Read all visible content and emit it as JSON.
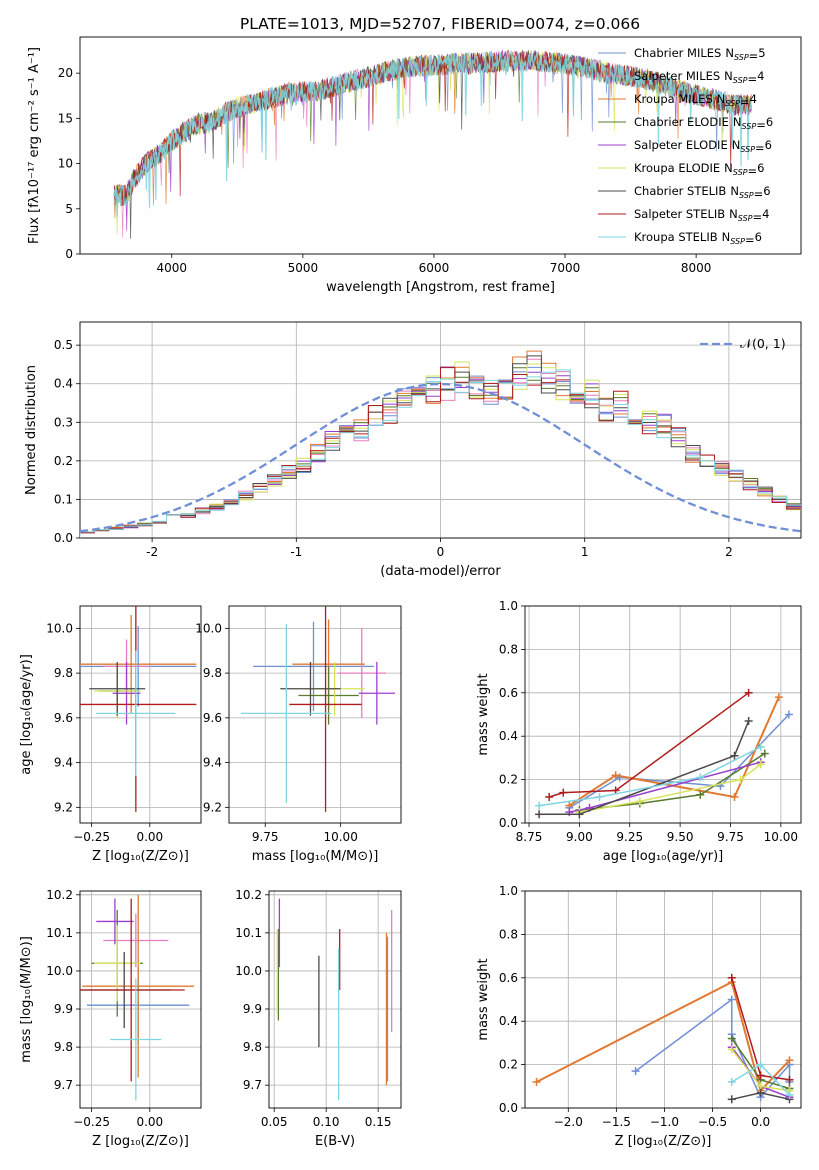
{
  "figure": {
    "title": "PLATE=1013, MJD=52707, FIBERID=0074, z=0.066"
  },
  "models": [
    {
      "name": "Chabrier MILES",
      "nssp": "5",
      "color": "#6f8fd6"
    },
    {
      "name": "Salpeter MILES",
      "nssp": "4",
      "color": "#e87dbf"
    },
    {
      "name": "Kroupa MILES",
      "nssp": "4",
      "color": "#e07a30"
    },
    {
      "name": "Chabrier ELODIE",
      "nssp": "6",
      "color": "#5a7a2e"
    },
    {
      "name": "Salpeter ELODIE",
      "nssp": "6",
      "color": "#9b3fce"
    },
    {
      "name": "Kroupa ELODIE",
      "nssp": "6",
      "color": "#d6e35a"
    },
    {
      "name": "Chabrier STELIB",
      "nssp": "6",
      "color": "#4a4a4a"
    },
    {
      "name": "Salpeter STELIB",
      "nssp": "4",
      "color": "#b01c1c"
    },
    {
      "name": "Kroupa STELIB",
      "nssp": "6",
      "color": "#7fd6e0"
    }
  ],
  "nssp_prefix": "N",
  "nssp_sub": "SSP",
  "chart_data": [
    {
      "id": "spectrum",
      "type": "line",
      "xlabel": "wavelength [Angstrom, rest frame]",
      "ylabel": "Flux [fλ10⁻¹⁷ erg cm⁻² s⁻¹ A⁻¹]",
      "xlim": [
        3300,
        8800
      ],
      "ylim": [
        0,
        24
      ],
      "xticks": [
        4000,
        5000,
        6000,
        7000,
        8000
      ],
      "yticks": [
        0,
        5,
        10,
        15,
        20
      ],
      "grid": false,
      "legend_placement": "right",
      "continuum": [
        [
          3560,
          6.5
        ],
        [
          3650,
          6.5
        ],
        [
          3700,
          8
        ],
        [
          3800,
          10
        ],
        [
          3900,
          11
        ],
        [
          4000,
          12.5
        ],
        [
          4100,
          13.5
        ],
        [
          4200,
          14.5
        ],
        [
          4300,
          14.5
        ],
        [
          4400,
          15.5
        ],
        [
          4500,
          16.2
        ],
        [
          4700,
          17
        ],
        [
          4900,
          17.8
        ],
        [
          5100,
          18
        ],
        [
          5300,
          18.8
        ],
        [
          5500,
          19.6
        ],
        [
          5700,
          20.4
        ],
        [
          5900,
          20.8
        ],
        [
          6100,
          21
        ],
        [
          6300,
          21.1
        ],
        [
          6500,
          21.3
        ],
        [
          6700,
          21.4
        ],
        [
          6900,
          21.2
        ],
        [
          7100,
          20.8
        ],
        [
          7300,
          20.1
        ],
        [
          7500,
          19.7
        ],
        [
          7700,
          19
        ],
        [
          7900,
          18
        ],
        [
          8100,
          17.2
        ],
        [
          8300,
          16.5
        ],
        [
          8400,
          16.5
        ]
      ]
    },
    {
      "id": "residuals",
      "type": "histogram",
      "xlabel": "(data-model)/error",
      "ylabel": "Normed distribution",
      "xlim": [
        -2.5,
        2.5
      ],
      "ylim": [
        0,
        0.56
      ],
      "xticks": [
        -2,
        -1,
        0,
        1,
        2
      ],
      "yticks": [
        0.0,
        0.1,
        0.2,
        0.3,
        0.4,
        0.5
      ],
      "grid": true,
      "legend_placement": "top-right",
      "legend_label": "𝒩(0, 1)",
      "reference_curve": "normal(0,1)",
      "bin_width": 0.1,
      "bins_start": -2.5,
      "profile": [
        0.015,
        0.02,
        0.025,
        0.03,
        0.035,
        0.04,
        0.055,
        0.06,
        0.07,
        0.08,
        0.09,
        0.11,
        0.13,
        0.15,
        0.17,
        0.19,
        0.22,
        0.25,
        0.27,
        0.28,
        0.31,
        0.33,
        0.36,
        0.38,
        0.39,
        0.4,
        0.42,
        0.4,
        0.38,
        0.39,
        0.43,
        0.44,
        0.42,
        0.4,
        0.39,
        0.37,
        0.34,
        0.35,
        0.31,
        0.3,
        0.29,
        0.26,
        0.22,
        0.2,
        0.18,
        0.16,
        0.14,
        0.12,
        0.1,
        0.08
      ]
    },
    {
      "id": "age-vs-Z",
      "type": "errorbar",
      "xlabel": "Z [log₁₀(Z/Z⊙)]",
      "ylabel": "age  [log₁₀(age/yr)]",
      "xlim": [
        -0.3,
        0.22
      ],
      "ylim": [
        9.13,
        10.1
      ],
      "xticks": [
        -0.25,
        0.0
      ],
      "xtick_labels": [
        "−0.25",
        "0.00"
      ],
      "yticks": [
        9.2,
        9.4,
        9.6,
        9.8,
        10.0
      ],
      "grid": true,
      "points": [
        {
          "x": -0.05,
          "xerr": 0.25,
          "y": 9.83,
          "yerr": 0.18,
          "color": "#6f8fd6"
        },
        {
          "x": -0.1,
          "xerr": 0.1,
          "y": 9.83,
          "yerr": 0.12,
          "color": "#e87dbf"
        },
        {
          "x": -0.08,
          "xerr": 0.28,
          "y": 9.84,
          "yerr": 0.22,
          "color": "#e07a30"
        },
        {
          "x": -0.14,
          "xerr": 0.08,
          "y": 9.72,
          "yerr": 0.12,
          "color": "#5a7a2e"
        },
        {
          "x": -0.1,
          "xerr": 0.06,
          "y": 9.71,
          "yerr": 0.14,
          "color": "#9b3fce"
        },
        {
          "x": -0.14,
          "xerr": 0.1,
          "y": 9.72,
          "yerr": 0.12,
          "color": "#d6e35a"
        },
        {
          "x": -0.14,
          "xerr": 0.12,
          "y": 9.73,
          "yerr": 0.12,
          "color": "#4a4a4a"
        },
        {
          "x": -0.06,
          "xerr": 0.26,
          "y": 9.66,
          "yerr": 0.48,
          "color": "#b01c1c"
        },
        {
          "x": -0.06,
          "xerr": 0.17,
          "y": 9.62,
          "yerr": 0.28,
          "color": "#7fd6e0"
        }
      ]
    },
    {
      "id": "age-vs-mass",
      "type": "errorbar",
      "xlabel": "mass [log₁₀(M/M⊙)]",
      "ylabel": "",
      "xlim": [
        9.63,
        10.2
      ],
      "ylim": [
        9.13,
        10.1
      ],
      "xticks": [
        9.75,
        10.0
      ],
      "xtick_labels": [
        "9.75",
        "10.00"
      ],
      "yticks": [
        9.2,
        9.4,
        9.6,
        9.8,
        10.0
      ],
      "grid": true,
      "points": [
        {
          "x": 9.91,
          "xerr": 0.2,
          "y": 9.83,
          "yerr": 0.2,
          "color": "#6f8fd6"
        },
        {
          "x": 10.07,
          "xerr": 0.08,
          "y": 9.8,
          "yerr": 0.2,
          "color": "#e87dbf"
        },
        {
          "x": 9.96,
          "xerr": 0.12,
          "y": 9.84,
          "yerr": 0.2,
          "color": "#e07a30"
        },
        {
          "x": 9.96,
          "xerr": 0.1,
          "y": 9.7,
          "yerr": 0.13,
          "color": "#5a7a2e"
        },
        {
          "x": 10.12,
          "xerr": 0.06,
          "y": 9.71,
          "yerr": 0.14,
          "color": "#9b3fce"
        },
        {
          "x": 9.98,
          "xerr": 0.1,
          "y": 9.73,
          "yerr": 0.12,
          "color": "#d6e35a"
        },
        {
          "x": 9.9,
          "xerr": 0.1,
          "y": 9.73,
          "yerr": 0.12,
          "color": "#4a4a4a"
        },
        {
          "x": 9.95,
          "xerr": 0.12,
          "y": 9.66,
          "yerr": 0.48,
          "color": "#b01c1c"
        },
        {
          "x": 9.82,
          "xerr": 0.15,
          "y": 9.62,
          "yerr": 0.4,
          "color": "#7fd6e0"
        }
      ]
    },
    {
      "id": "weight-vs-age",
      "type": "line",
      "xlabel": "age  [log₁₀(age/yr)]",
      "ylabel": "mass weight",
      "xlim": [
        8.73,
        10.1
      ],
      "ylim": [
        0.0,
        1.0
      ],
      "xticks": [
        8.75,
        9.0,
        9.25,
        9.5,
        9.75,
        10.0
      ],
      "xtick_labels": [
        "8.75",
        "9.00",
        "9.25",
        "9.50",
        "9.75",
        "10.00"
      ],
      "yticks": [
        0.0,
        0.2,
        0.4,
        0.6,
        0.8,
        1.0
      ],
      "grid": true,
      "series": [
        {
          "color": "#6f8fd6",
          "points": [
            [
              8.95,
              0.07
            ],
            [
              9.2,
              0.21
            ],
            [
              9.7,
              0.17
            ],
            [
              10.04,
              0.5
            ]
          ]
        },
        {
          "color": "#e07a30",
          "points": [
            [
              8.95,
              0.08
            ],
            [
              9.18,
              0.22
            ],
            [
              9.77,
              0.12
            ],
            [
              9.99,
              0.58
            ]
          ]
        },
        {
          "color": "#5a7a2e",
          "points": [
            [
              9.0,
              0.06
            ],
            [
              9.3,
              0.09
            ],
            [
              9.6,
              0.13
            ],
            [
              9.92,
              0.32
            ]
          ]
        },
        {
          "color": "#9b3fce",
          "points": [
            [
              8.95,
              0.05
            ],
            [
              9.05,
              0.07
            ],
            [
              9.9,
              0.28
            ]
          ]
        },
        {
          "color": "#d6e35a",
          "points": [
            [
              9.0,
              0.05
            ],
            [
              9.3,
              0.1
            ],
            [
              9.8,
              0.2
            ],
            [
              9.9,
              0.27
            ]
          ]
        },
        {
          "color": "#4a4a4a",
          "points": [
            [
              8.8,
              0.04
            ],
            [
              9.0,
              0.04
            ],
            [
              9.77,
              0.31
            ],
            [
              9.84,
              0.47
            ]
          ]
        },
        {
          "color": "#b01c1c",
          "points": [
            [
              8.85,
              0.12
            ],
            [
              8.92,
              0.14
            ],
            [
              9.18,
              0.15
            ],
            [
              9.84,
              0.6
            ]
          ]
        },
        {
          "color": "#7fd6e0",
          "points": [
            [
              8.8,
              0.08
            ],
            [
              9.1,
              0.12
            ],
            [
              9.6,
              0.21
            ],
            [
              9.9,
              0.35
            ]
          ]
        }
      ]
    },
    {
      "id": "mass-vs-Z",
      "type": "errorbar",
      "xlabel": "Z [log₁₀(Z/Z⊙)]",
      "ylabel": "mass [log₁₀(M/M⊙)]",
      "xlim": [
        -0.3,
        0.22
      ],
      "ylim": [
        9.64,
        10.21
      ],
      "xticks": [
        -0.25,
        0.0
      ],
      "xtick_labels": [
        "−0.25",
        "0.00"
      ],
      "yticks": [
        9.7,
        9.8,
        9.9,
        10.0,
        10.1,
        10.2
      ],
      "grid": true,
      "points": [
        {
          "x": -0.05,
          "xerr": 0.22,
          "y": 9.91,
          "yerr": 0.1,
          "color": "#6f8fd6"
        },
        {
          "x": -0.06,
          "xerr": 0.14,
          "y": 10.08,
          "yerr": 0.07,
          "color": "#e87dbf"
        },
        {
          "x": -0.05,
          "xerr": 0.24,
          "y": 9.96,
          "yerr": 0.24,
          "color": "#e07a30"
        },
        {
          "x": -0.14,
          "xerr": 0.11,
          "y": 10.02,
          "yerr": 0.14,
          "color": "#5a7a2e"
        },
        {
          "x": -0.15,
          "xerr": 0.08,
          "y": 10.13,
          "yerr": 0.06,
          "color": "#9b3fce"
        },
        {
          "x": -0.14,
          "xerr": 0.1,
          "y": 10.02,
          "yerr": 0.1,
          "color": "#d6e35a"
        },
        {
          "x": -0.11,
          "xerr": 0.2,
          "y": 9.95,
          "yerr": 0.1,
          "color": "#4a4a4a"
        },
        {
          "x": -0.08,
          "xerr": 0.23,
          "y": 9.95,
          "yerr": 0.24,
          "color": "#b01c1c"
        },
        {
          "x": -0.06,
          "xerr": 0.11,
          "y": 9.82,
          "yerr": 0.16,
          "color": "#7fd6e0"
        }
      ]
    },
    {
      "id": "mass-vs-ebv",
      "type": "errorbar",
      "xlabel": "E(B-V)",
      "ylabel": "",
      "xlim": [
        0.045,
        0.172
      ],
      "ylim": [
        9.64,
        10.21
      ],
      "xticks": [
        0.05,
        0.1,
        0.15
      ],
      "xtick_labels": [
        "0.05",
        "0.10",
        "0.15"
      ],
      "yticks": [
        9.7,
        9.8,
        9.9,
        10.0,
        10.1,
        10.2
      ],
      "grid": true,
      "points": [
        {
          "x": 0.159,
          "xerr": 0,
          "y": 9.9,
          "yerr": 0.19,
          "color": "#6f8fd6"
        },
        {
          "x": 0.163,
          "xerr": 0,
          "y": 10.0,
          "yerr": 0.16,
          "color": "#e87dbf"
        },
        {
          "x": 0.158,
          "xerr": 0,
          "y": 9.9,
          "yerr": 0.2,
          "color": "#e07a30"
        },
        {
          "x": 0.054,
          "xerr": 0,
          "y": 9.99,
          "yerr": 0.12,
          "color": "#5a7a2e"
        },
        {
          "x": 0.055,
          "xerr": 0,
          "y": 10.1,
          "yerr": 0.09,
          "color": "#9b3fce"
        },
        {
          "x": 0.053,
          "xerr": 0,
          "y": 10.0,
          "yerr": 0.11,
          "color": "#d6e35a"
        },
        {
          "x": 0.093,
          "xerr": 0,
          "y": 9.92,
          "yerr": 0.12,
          "color": "#4a4a4a"
        },
        {
          "x": 0.113,
          "xerr": 0,
          "y": 10.03,
          "yerr": 0.08,
          "color": "#b01c1c"
        },
        {
          "x": 0.112,
          "xerr": 0,
          "y": 9.86,
          "yerr": 0.2,
          "color": "#7fd6e0"
        }
      ]
    },
    {
      "id": "weight-vs-Z",
      "type": "line",
      "xlabel": "Z [log₁₀(Z/Z⊙)]",
      "ylabel": "mass weight",
      "xlim": [
        -2.45,
        0.42
      ],
      "ylim": [
        0.0,
        1.0
      ],
      "xticks": [
        -2.0,
        -1.5,
        -1.0,
        -0.5,
        0.0
      ],
      "xtick_labels": [
        "−2.0",
        "−1.5",
        "−1.0",
        "−0.5",
        "0.0"
      ],
      "yticks": [
        0.0,
        0.2,
        0.4,
        0.6,
        0.8,
        1.0
      ],
      "grid": true,
      "series": [
        {
          "color": "#6f8fd6",
          "points": [
            [
              -1.3,
              0.17
            ],
            [
              -0.3,
              0.5
            ],
            [
              -0.3,
              0.34
            ],
            [
              0.0,
              0.05
            ],
            [
              0.3,
              0.2
            ],
            [
              0.3,
              0.12
            ]
          ]
        },
        {
          "color": "#e07a30",
          "points": [
            [
              -2.33,
              0.12
            ],
            [
              -0.3,
              0.58
            ],
            [
              0.0,
              0.08
            ],
            [
              0.3,
              0.22
            ]
          ]
        },
        {
          "color": "#5a7a2e",
          "points": [
            [
              -0.3,
              0.32
            ],
            [
              0.0,
              0.13
            ],
            [
              0.3,
              0.09
            ]
          ]
        },
        {
          "color": "#9b3fce",
          "points": [
            [
              -0.3,
              0.28
            ],
            [
              0.0,
              0.1
            ],
            [
              0.3,
              0.05
            ]
          ]
        },
        {
          "color": "#d6e35a",
          "points": [
            [
              -0.3,
              0.27
            ],
            [
              0.0,
              0.1
            ],
            [
              0.3,
              0.08
            ]
          ]
        },
        {
          "color": "#4a4a4a",
          "points": [
            [
              -0.3,
              0.04
            ],
            [
              0.0,
              0.07
            ],
            [
              0.3,
              0.04
            ]
          ]
        },
        {
          "color": "#b01c1c",
          "points": [
            [
              -0.3,
              0.6
            ],
            [
              0.0,
              0.15
            ],
            [
              0.3,
              0.13
            ]
          ]
        },
        {
          "color": "#7fd6e0",
          "points": [
            [
              -0.3,
              0.12
            ],
            [
              0.0,
              0.2
            ],
            [
              0.3,
              0.06
            ]
          ]
        }
      ]
    }
  ]
}
